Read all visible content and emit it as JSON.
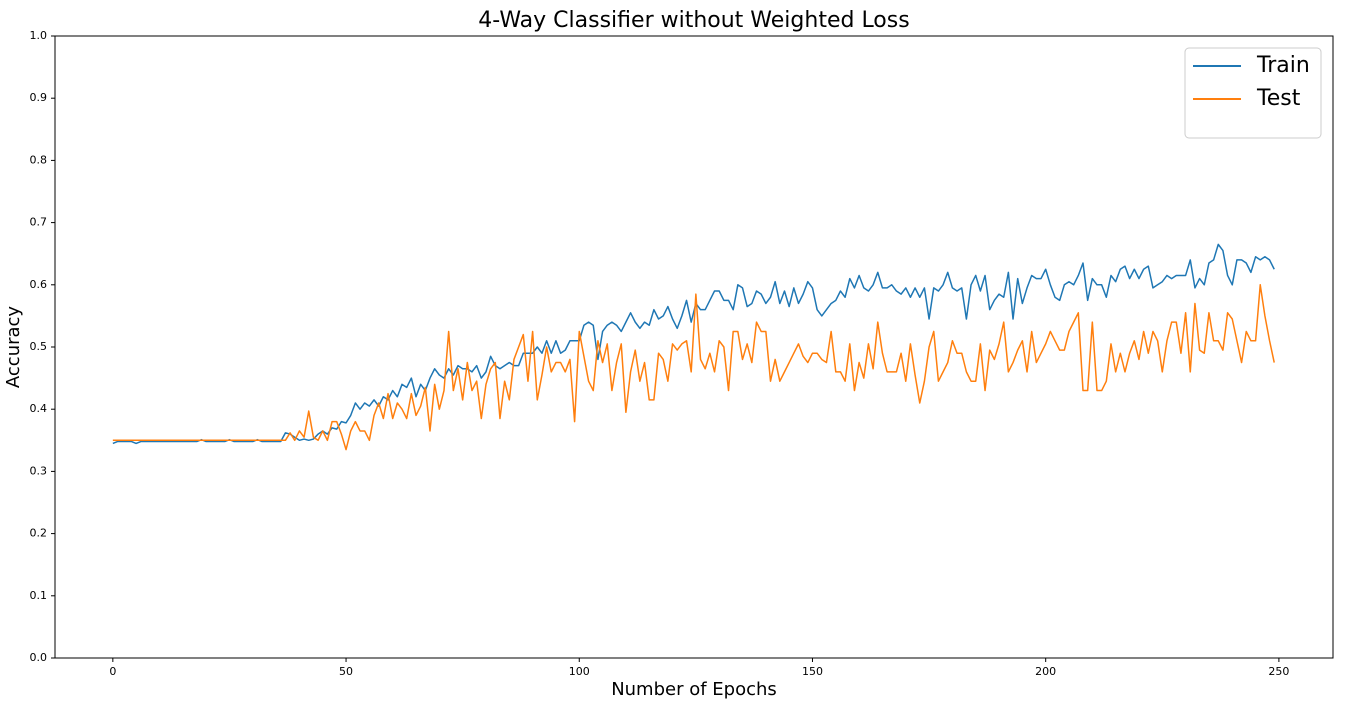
{
  "chart_data": {
    "type": "line",
    "title": "4-Way Classifier without Weighted Loss",
    "xlabel": "Number of Epochs",
    "ylabel": "Accuracy",
    "x": [
      0,
      1,
      2,
      3,
      4,
      5,
      6,
      7,
      8,
      9,
      10,
      11,
      12,
      13,
      14,
      15,
      16,
      17,
      18,
      19,
      20,
      21,
      22,
      23,
      24,
      25,
      26,
      27,
      28,
      29,
      30,
      31,
      32,
      33,
      34,
      35,
      36,
      37,
      38,
      39,
      40,
      41,
      42,
      43,
      44,
      45,
      46,
      47,
      48,
      49,
      50,
      51,
      52,
      53,
      54,
      55,
      56,
      57,
      58,
      59,
      60,
      61,
      62,
      63,
      64,
      65,
      66,
      67,
      68,
      69,
      70,
      71,
      72,
      73,
      74,
      75,
      76,
      77,
      78,
      79,
      80,
      81,
      82,
      83,
      84,
      85,
      86,
      87,
      88,
      89,
      90,
      91,
      92,
      93,
      94,
      95,
      96,
      97,
      98,
      99,
      100,
      101,
      102,
      103,
      104,
      105,
      106,
      107,
      108,
      109,
      110,
      111,
      112,
      113,
      114,
      115,
      116,
      117,
      118,
      119,
      120,
      121,
      122,
      123,
      124,
      125,
      126,
      127,
      128,
      129,
      130,
      131,
      132,
      133,
      134,
      135,
      136,
      137,
      138,
      139,
      140,
      141,
      142,
      143,
      144,
      145,
      146,
      147,
      148,
      149,
      150,
      151,
      152,
      153,
      154,
      155,
      156,
      157,
      158,
      159,
      160,
      161,
      162,
      163,
      164,
      165,
      166,
      167,
      168,
      169,
      170,
      171,
      172,
      173,
      174,
      175,
      176,
      177,
      178,
      179,
      180,
      181,
      182,
      183,
      184,
      185,
      186,
      187,
      188,
      189,
      190,
      191,
      192,
      193,
      194,
      195,
      196,
      197,
      198,
      199,
      200,
      201,
      202,
      203,
      204,
      205,
      206,
      207,
      208,
      209,
      210,
      211,
      212,
      213,
      214,
      215,
      216,
      217,
      218,
      219,
      220,
      221,
      222,
      223,
      224,
      225,
      226,
      227,
      228,
      229,
      230,
      231,
      232,
      233,
      234,
      235,
      236,
      237,
      238,
      239,
      240,
      241,
      242,
      243,
      244,
      245,
      246,
      247,
      248,
      249
    ],
    "series": [
      {
        "name": "Train",
        "color": "#1f77b4",
        "values": [
          0.345,
          0.348,
          0.348,
          0.348,
          0.348,
          0.345,
          0.348,
          0.348,
          0.348,
          0.348,
          0.348,
          0.348,
          0.348,
          0.348,
          0.348,
          0.348,
          0.348,
          0.348,
          0.348,
          0.351,
          0.348,
          0.348,
          0.348,
          0.348,
          0.348,
          0.351,
          0.348,
          0.348,
          0.348,
          0.348,
          0.348,
          0.351,
          0.348,
          0.348,
          0.348,
          0.348,
          0.348,
          0.362,
          0.36,
          0.355,
          0.35,
          0.352,
          0.35,
          0.352,
          0.36,
          0.365,
          0.36,
          0.37,
          0.368,
          0.38,
          0.378,
          0.39,
          0.41,
          0.4,
          0.41,
          0.405,
          0.415,
          0.405,
          0.42,
          0.415,
          0.43,
          0.42,
          0.44,
          0.435,
          0.45,
          0.42,
          0.44,
          0.43,
          0.45,
          0.465,
          0.455,
          0.45,
          0.465,
          0.455,
          0.47,
          0.465,
          0.465,
          0.46,
          0.47,
          0.45,
          0.46,
          0.485,
          0.47,
          0.465,
          0.47,
          0.475,
          0.47,
          0.47,
          0.49,
          0.49,
          0.49,
          0.5,
          0.49,
          0.51,
          0.49,
          0.51,
          0.49,
          0.495,
          0.51,
          0.51,
          0.51,
          0.535,
          0.54,
          0.535,
          0.48,
          0.525,
          0.535,
          0.54,
          0.535,
          0.525,
          0.54,
          0.555,
          0.54,
          0.53,
          0.54,
          0.535,
          0.56,
          0.545,
          0.55,
          0.565,
          0.545,
          0.53,
          0.55,
          0.575,
          0.54,
          0.57,
          0.56,
          0.56,
          0.575,
          0.59,
          0.59,
          0.575,
          0.575,
          0.56,
          0.6,
          0.595,
          0.565,
          0.57,
          0.59,
          0.585,
          0.57,
          0.58,
          0.605,
          0.57,
          0.59,
          0.565,
          0.595,
          0.57,
          0.585,
          0.605,
          0.595,
          0.56,
          0.55,
          0.56,
          0.57,
          0.575,
          0.59,
          0.58,
          0.61,
          0.595,
          0.615,
          0.595,
          0.59,
          0.6,
          0.62,
          0.595,
          0.595,
          0.6,
          0.59,
          0.585,
          0.595,
          0.58,
          0.595,
          0.58,
          0.595,
          0.545,
          0.595,
          0.59,
          0.6,
          0.62,
          0.595,
          0.59,
          0.595,
          0.545,
          0.6,
          0.615,
          0.59,
          0.615,
          0.56,
          0.575,
          0.585,
          0.58,
          0.62,
          0.545,
          0.61,
          0.57,
          0.595,
          0.615,
          0.61,
          0.61,
          0.625,
          0.6,
          0.58,
          0.575,
          0.6,
          0.605,
          0.6,
          0.615,
          0.635,
          0.575,
          0.61,
          0.6,
          0.6,
          0.58,
          0.615,
          0.605,
          0.625,
          0.63,
          0.61,
          0.625,
          0.61,
          0.625,
          0.63,
          0.595,
          0.6,
          0.605,
          0.615,
          0.61,
          0.615,
          0.615,
          0.615,
          0.64,
          0.595,
          0.61,
          0.6,
          0.635,
          0.64,
          0.665,
          0.655,
          0.615,
          0.6,
          0.64,
          0.64,
          0.635,
          0.62,
          0.645,
          0.64,
          0.645,
          0.64,
          0.625
        ]
      },
      {
        "name": "Test",
        "color": "#ff7f0e",
        "values": [
          0.35,
          0.35,
          0.35,
          0.35,
          0.35,
          0.35,
          0.35,
          0.35,
          0.35,
          0.35,
          0.35,
          0.35,
          0.35,
          0.35,
          0.35,
          0.35,
          0.35,
          0.35,
          0.35,
          0.35,
          0.35,
          0.35,
          0.35,
          0.35,
          0.35,
          0.35,
          0.35,
          0.35,
          0.35,
          0.35,
          0.35,
          0.35,
          0.35,
          0.35,
          0.35,
          0.35,
          0.35,
          0.35,
          0.362,
          0.35,
          0.365,
          0.355,
          0.397,
          0.355,
          0.35,
          0.365,
          0.35,
          0.38,
          0.38,
          0.36,
          0.335,
          0.365,
          0.38,
          0.365,
          0.365,
          0.35,
          0.39,
          0.41,
          0.385,
          0.425,
          0.385,
          0.41,
          0.4,
          0.385,
          0.425,
          0.39,
          0.405,
          0.435,
          0.365,
          0.44,
          0.4,
          0.43,
          0.525,
          0.43,
          0.465,
          0.415,
          0.475,
          0.43,
          0.445,
          0.385,
          0.44,
          0.465,
          0.475,
          0.385,
          0.445,
          0.415,
          0.48,
          0.5,
          0.52,
          0.445,
          0.525,
          0.415,
          0.455,
          0.5,
          0.46,
          0.475,
          0.475,
          0.46,
          0.48,
          0.38,
          0.525,
          0.485,
          0.445,
          0.43,
          0.51,
          0.475,
          0.505,
          0.43,
          0.475,
          0.505,
          0.395,
          0.46,
          0.495,
          0.445,
          0.475,
          0.415,
          0.415,
          0.49,
          0.48,
          0.445,
          0.505,
          0.495,
          0.505,
          0.51,
          0.46,
          0.585,
          0.48,
          0.465,
          0.49,
          0.46,
          0.51,
          0.5,
          0.43,
          0.525,
          0.525,
          0.48,
          0.505,
          0.475,
          0.54,
          0.525,
          0.525,
          0.445,
          0.48,
          0.445,
          0.46,
          0.475,
          0.49,
          0.505,
          0.485,
          0.475,
          0.49,
          0.49,
          0.48,
          0.475,
          0.525,
          0.46,
          0.46,
          0.445,
          0.505,
          0.43,
          0.475,
          0.45,
          0.505,
          0.465,
          0.54,
          0.49,
          0.46,
          0.46,
          0.46,
          0.49,
          0.445,
          0.505,
          0.455,
          0.41,
          0.445,
          0.5,
          0.525,
          0.445,
          0.46,
          0.475,
          0.51,
          0.49,
          0.49,
          0.46,
          0.445,
          0.445,
          0.505,
          0.43,
          0.495,
          0.48,
          0.505,
          0.54,
          0.46,
          0.475,
          0.495,
          0.51,
          0.46,
          0.525,
          0.475,
          0.49,
          0.505,
          0.525,
          0.51,
          0.495,
          0.495,
          0.525,
          0.54,
          0.555,
          0.43,
          0.43,
          0.54,
          0.43,
          0.43,
          0.445,
          0.505,
          0.46,
          0.49,
          0.46,
          0.49,
          0.51,
          0.48,
          0.525,
          0.49,
          0.525,
          0.51,
          0.46,
          0.51,
          0.54,
          0.54,
          0.49,
          0.555,
          0.46,
          0.57,
          0.495,
          0.49,
          0.555,
          0.51,
          0.51,
          0.495,
          0.555,
          0.545,
          0.51,
          0.475,
          0.525,
          0.51,
          0.51,
          0.6,
          0.55,
          0.51,
          0.475
        ]
      }
    ],
    "xlim": [
      -12.4,
      261.6
    ],
    "xticks": [
      0,
      50,
      100,
      150,
      200,
      250
    ],
    "ylim": [
      0,
      1
    ],
    "yticks": [
      {
        "value": 0,
        "label": "0.0"
      },
      0.1,
      0.2,
      0.3,
      0.4,
      0.5,
      0.6,
      0.7,
      0.8,
      0.9,
      {
        "value": 1,
        "label": "1.0"
      }
    ],
    "grid": false,
    "legend": "upper right"
  }
}
